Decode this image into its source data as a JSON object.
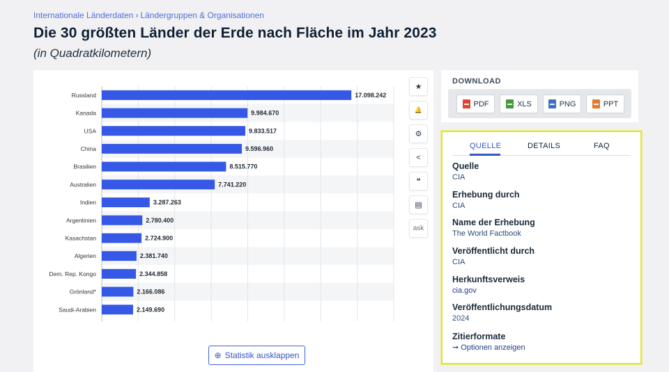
{
  "breadcrumb": {
    "items": [
      "Internationale Länderdaten",
      "Ländergruppen & Organisationen"
    ],
    "separator": "›"
  },
  "header": {
    "title": "Die 30 größten Länder der Erde nach Fläche im Jahr 2023",
    "subtitle": "(in Quadratkilometern)"
  },
  "colors": {
    "bar": "#3658e6",
    "link": "#3554c8",
    "highlight_border": "#e0e04a"
  },
  "chart_data": {
    "type": "bar",
    "orientation": "horizontal",
    "categories": [
      "Russland",
      "Kanada",
      "USA",
      "China",
      "Brasilien",
      "Australien",
      "Indien",
      "Argentinien",
      "Kasachstan",
      "Algerien",
      "Dem. Rep. Kongo",
      "Grönland*",
      "Saudi-Arabien"
    ],
    "values": [
      17098242,
      9984670,
      9833517,
      9596960,
      8515770,
      7741220,
      3287263,
      2780400,
      2724900,
      2381740,
      2344858,
      2166086,
      2149690
    ],
    "value_labels": [
      "17.098.242",
      "9.984.670",
      "9.833.517",
      "9.596.960",
      "8.515.770",
      "7.741.220",
      "3.287.263",
      "2.780.400",
      "2.724.900",
      "2.381.740",
      "2.344.858",
      "2.166.086",
      "2.149.690"
    ],
    "xlim": [
      0,
      20000000
    ],
    "grid": true
  },
  "side_tools": [
    {
      "name": "favorite-icon",
      "glyph": "★"
    },
    {
      "name": "notification-bell-icon",
      "glyph": "🔔"
    },
    {
      "name": "settings-gear-icon",
      "glyph": "⚙"
    },
    {
      "name": "share-icon",
      "glyph": "<"
    },
    {
      "name": "quote-icon",
      "glyph": "❝"
    },
    {
      "name": "print-icon",
      "glyph": "▤"
    },
    {
      "name": "ask-icon",
      "glyph": "ask"
    }
  ],
  "expand_button": {
    "icon": "⊕",
    "label": "Statistik ausklappen"
  },
  "download": {
    "title": "DOWNLOAD",
    "buttons": [
      {
        "label": "PDF",
        "color": "#e0442e"
      },
      {
        "label": "XLS",
        "color": "#3f9a3a"
      },
      {
        "label": "PNG",
        "color": "#3a6fc4"
      },
      {
        "label": "PPT",
        "color": "#e07a2e"
      }
    ]
  },
  "source_panel": {
    "tabs": [
      "QUELLE",
      "DETAILS",
      "FAQ"
    ],
    "active_tab": "QUELLE",
    "fields": [
      {
        "label": "Quelle",
        "value": "CIA"
      },
      {
        "label": "Erhebung durch",
        "value": "CIA"
      },
      {
        "label": "Name der Erhebung",
        "value": "The World Factbook"
      },
      {
        "label": "Veröffentlicht durch",
        "value": "CIA"
      },
      {
        "label": "Herkunftsverweis",
        "value": "cia.gov"
      },
      {
        "label": "Veröffentlichungsdatum",
        "value": "2024"
      },
      {
        "label": "Zitierformate",
        "value": "Optionen anzeigen",
        "arrow": "➞"
      }
    ]
  }
}
